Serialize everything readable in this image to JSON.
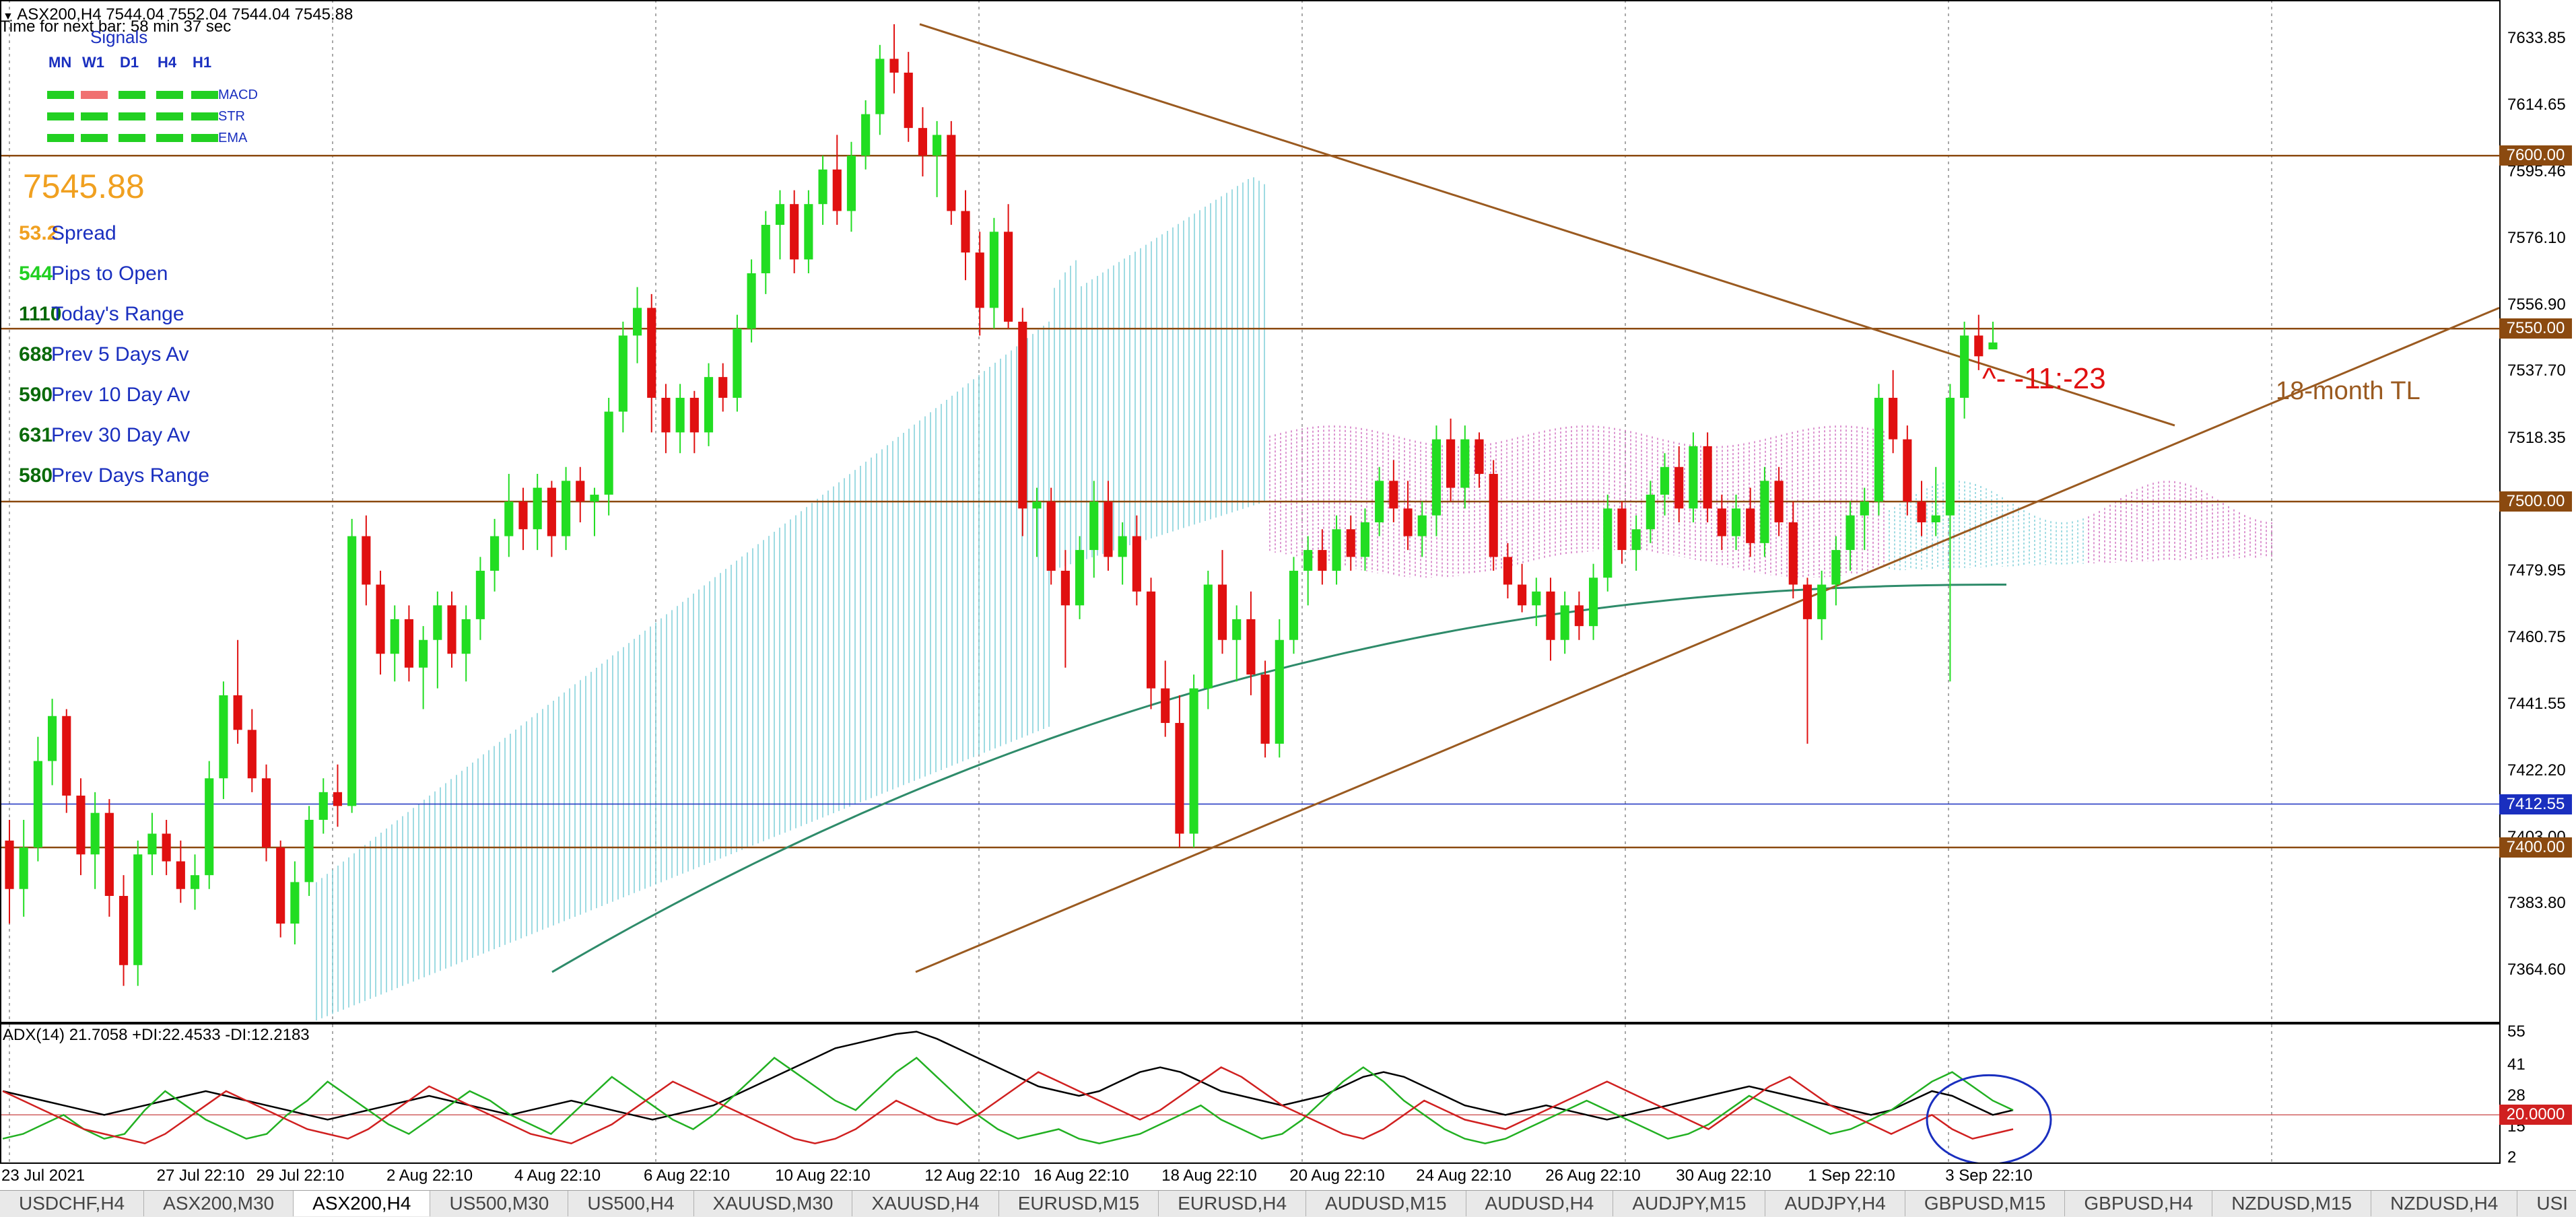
{
  "chart_header": {
    "title": "ASX200,H4  7544.04 7552.04 7544.04 7545.88",
    "next_bar": "Time for next bar: 58 min 37 sec"
  },
  "signals": {
    "title": "Signals",
    "timeframes": [
      "MN",
      "W1",
      "D1",
      "H4",
      "H1"
    ],
    "rows": [
      {
        "name": "MACD",
        "colors": [
          "#22d022",
          "#f07070",
          "#22d022",
          "#22d022",
          "#22d022"
        ],
        "name_color": "#f07070"
      },
      {
        "name": "STR",
        "colors": [
          "#22d022",
          "#22d022",
          "#22d022",
          "#22d022",
          "#22d022"
        ],
        "name_color": "#f0a020"
      },
      {
        "name": "EMA",
        "colors": [
          "#22d022",
          "#22d022",
          "#22d022",
          "#22d022",
          "#22d022"
        ],
        "name_color": "#22d022"
      }
    ]
  },
  "info_panel": {
    "price": "7545.88",
    "stats": [
      {
        "value": "53.2",
        "label": "Spread",
        "color": "#f0a020"
      },
      {
        "value": "544",
        "label": "Pips to Open",
        "color": "#22d022"
      },
      {
        "value": "1110",
        "label": "Today's Range",
        "color": "#0a6a0a"
      },
      {
        "value": "688",
        "label": "Prev 5 Days Av",
        "color": "#0a6a0a"
      },
      {
        "value": "590",
        "label": "Prev 10 Day Av",
        "color": "#0a6a0a"
      },
      {
        "value": "631",
        "label": "Prev 30 Day Av",
        "color": "#0a6a0a"
      },
      {
        "value": "580",
        "label": "Prev Days Range",
        "color": "#0a6a0a"
      }
    ]
  },
  "annotations": {
    "tl_label": "18-month TL",
    "bar_note": "^- -11:-23"
  },
  "price_axis": {
    "ticks": [
      "7633.85",
      "7614.65",
      "7595.46",
      "7576.10",
      "7556.90",
      "7537.70",
      "7518.35",
      "7499.15",
      "7479.95",
      "7460.75",
      "7441.55",
      "7422.20",
      "7403.00",
      "7383.80",
      "7364.60"
    ],
    "tick_values": [
      7633.85,
      7614.65,
      7595.46,
      7576.1,
      7556.9,
      7537.7,
      7518.35,
      7499.15,
      7479.95,
      7460.75,
      7441.55,
      7422.2,
      7403.0,
      7383.8,
      7364.6
    ],
    "level_tags": [
      {
        "label": "7600.00",
        "value": 7600.0,
        "color": "#8b4a10"
      },
      {
        "label": "7550.00",
        "value": 7550.0,
        "color": "#8b4a10"
      },
      {
        "label": "7500.00",
        "value": 7500.0,
        "color": "#8b4a10"
      },
      {
        "label": "7412.55",
        "value": 7412.55,
        "color": "#1a2fbf"
      },
      {
        "label": "7400.00",
        "value": 7400.0,
        "color": "#8b4a10"
      }
    ]
  },
  "time_axis": {
    "labels": [
      "23 Jul 2021",
      "27 Jul 22:10",
      "29 Jul 22:10",
      "2 Aug 22:10",
      "4 Aug 22:10",
      "6 Aug 22:10",
      "10 Aug 22:10",
      "12 Aug 22:10",
      "16 Aug 22:10",
      "18 Aug 22:10",
      "20 Aug 22:10",
      "24 Aug 22:10",
      "26 Aug 22:10",
      "30 Aug 22:10",
      "1 Sep 22:10",
      "3 Sep 22:10"
    ]
  },
  "adx": {
    "header": "ADX(14) 21.7058 +DI:22.4533 -DI:12.2183",
    "axis_ticks": [
      "55",
      "41",
      "28",
      "15",
      "2"
    ],
    "level_tag": "20.0000",
    "level_color": "#d02020"
  },
  "tabs": [
    {
      "label": "USDCHF,H4",
      "active": false
    },
    {
      "label": "ASX200,M30",
      "active": false
    },
    {
      "label": "ASX200,H4",
      "active": true
    },
    {
      "label": "US500,M30",
      "active": false
    },
    {
      "label": "US500,H4",
      "active": false
    },
    {
      "label": "XAUUSD,M30",
      "active": false
    },
    {
      "label": "XAUUSD,H4",
      "active": false
    },
    {
      "label": "EURUSD,M15",
      "active": false
    },
    {
      "label": "EURUSD,H4",
      "active": false
    },
    {
      "label": "AUDUSD,M15",
      "active": false
    },
    {
      "label": "AUDUSD,H4",
      "active": false
    },
    {
      "label": "AUDJPY,M15",
      "active": false
    },
    {
      "label": "AUDJPY,H4",
      "active": false
    },
    {
      "label": "GBPUSD,M15",
      "active": false
    },
    {
      "label": "GBPUSD,H4",
      "active": false
    },
    {
      "label": "NZDUSD,M15",
      "active": false
    },
    {
      "label": "NZDUSD,H4",
      "active": false
    },
    {
      "label": "USI",
      "active": false
    }
  ],
  "colors": {
    "bull": "#22dd22",
    "bear": "#e01010",
    "level": "#8b4a10",
    "trendline": "#9a5a20",
    "ma200": "#2e8b6a",
    "cloud_bull": "#7fcfd8",
    "cloud_bear": "#d070c0",
    "adx_main": "#000000",
    "adx_plus": "#22b022",
    "adx_minus": "#d02020",
    "note": "#e01010",
    "tl_label": "#9a5a20",
    "ellipse": "#1a2fbf"
  },
  "chart_data": {
    "type": "candlestick",
    "symbol": "ASX200",
    "timeframe": "H4",
    "ylim": [
      7350,
      7645
    ],
    "candles": [
      [
        7402,
        7408,
        7378,
        7388
      ],
      [
        7388,
        7408,
        7380,
        7400
      ],
      [
        7400,
        7432,
        7396,
        7425
      ],
      [
        7425,
        7443,
        7418,
        7438
      ],
      [
        7438,
        7440,
        7410,
        7415
      ],
      [
        7415,
        7420,
        7392,
        7398
      ],
      [
        7398,
        7416,
        7388,
        7410
      ],
      [
        7410,
        7414,
        7380,
        7386
      ],
      [
        7386,
        7392,
        7360,
        7366
      ],
      [
        7366,
        7402,
        7360,
        7398
      ],
      [
        7398,
        7410,
        7392,
        7404
      ],
      [
        7404,
        7408,
        7392,
        7396
      ],
      [
        7396,
        7402,
        7384,
        7388
      ],
      [
        7388,
        7398,
        7382,
        7392
      ],
      [
        7392,
        7425,
        7388,
        7420
      ],
      [
        7420,
        7448,
        7414,
        7444
      ],
      [
        7444,
        7460,
        7430,
        7434
      ],
      [
        7434,
        7440,
        7416,
        7420
      ],
      [
        7420,
        7424,
        7396,
        7400
      ],
      [
        7400,
        7402,
        7374,
        7378
      ],
      [
        7378,
        7396,
        7372,
        7390
      ],
      [
        7390,
        7412,
        7386,
        7408
      ],
      [
        7408,
        7420,
        7404,
        7416
      ],
      [
        7416,
        7424,
        7406,
        7412
      ],
      [
        7412,
        7495,
        7410,
        7490
      ],
      [
        7490,
        7496,
        7470,
        7476
      ],
      [
        7476,
        7480,
        7450,
        7456
      ],
      [
        7456,
        7470,
        7448,
        7466
      ],
      [
        7466,
        7470,
        7448,
        7452
      ],
      [
        7452,
        7464,
        7440,
        7460
      ],
      [
        7460,
        7474,
        7446,
        7470
      ],
      [
        7470,
        7474,
        7452,
        7456
      ],
      [
        7456,
        7470,
        7448,
        7466
      ],
      [
        7466,
        7484,
        7460,
        7480
      ],
      [
        7480,
        7495,
        7474,
        7490
      ],
      [
        7490,
        7508,
        7484,
        7500
      ],
      [
        7500,
        7504,
        7486,
        7492
      ],
      [
        7492,
        7508,
        7486,
        7504
      ],
      [
        7504,
        7506,
        7484,
        7490
      ],
      [
        7490,
        7510,
        7486,
        7506
      ],
      [
        7506,
        7510,
        7494,
        7500
      ],
      [
        7500,
        7504,
        7490,
        7502
      ],
      [
        7502,
        7530,
        7496,
        7526
      ],
      [
        7526,
        7552,
        7520,
        7548
      ],
      [
        7548,
        7562,
        7540,
        7556
      ],
      [
        7556,
        7560,
        7520,
        7530
      ],
      [
        7530,
        7534,
        7514,
        7520
      ],
      [
        7520,
        7534,
        7514,
        7530
      ],
      [
        7530,
        7532,
        7514,
        7520
      ],
      [
        7520,
        7540,
        7516,
        7536
      ],
      [
        7536,
        7540,
        7526,
        7530
      ],
      [
        7530,
        7554,
        7526,
        7550
      ],
      [
        7550,
        7570,
        7546,
        7566
      ],
      [
        7566,
        7584,
        7560,
        7580
      ],
      [
        7580,
        7590,
        7570,
        7586
      ],
      [
        7586,
        7590,
        7566,
        7570
      ],
      [
        7570,
        7590,
        7566,
        7586
      ],
      [
        7586,
        7600,
        7580,
        7596
      ],
      [
        7596,
        7606,
        7580,
        7584
      ],
      [
        7584,
        7604,
        7578,
        7600
      ],
      [
        7600,
        7616,
        7596,
        7612
      ],
      [
        7612,
        7632,
        7606,
        7628
      ],
      [
        7628,
        7638,
        7618,
        7624
      ],
      [
        7624,
        7630,
        7604,
        7608
      ],
      [
        7608,
        7614,
        7594,
        7600
      ],
      [
        7600,
        7610,
        7588,
        7606
      ],
      [
        7606,
        7610,
        7580,
        7584
      ],
      [
        7584,
        7590,
        7564,
        7572
      ],
      [
        7572,
        7578,
        7548,
        7556
      ],
      [
        7556,
        7582,
        7550,
        7578
      ],
      [
        7578,
        7586,
        7550,
        7552
      ],
      [
        7552,
        7556,
        7490,
        7498
      ],
      [
        7498,
        7504,
        7484,
        7500
      ],
      [
        7500,
        7504,
        7476,
        7480
      ],
      [
        7480,
        7486,
        7452,
        7470
      ],
      [
        7470,
        7490,
        7466,
        7486
      ],
      [
        7486,
        7506,
        7478,
        7500
      ],
      [
        7500,
        7506,
        7480,
        7484
      ],
      [
        7484,
        7494,
        7476,
        7490
      ],
      [
        7490,
        7496,
        7470,
        7474
      ],
      [
        7474,
        7478,
        7440,
        7446
      ],
      [
        7446,
        7454,
        7432,
        7436
      ],
      [
        7436,
        7444,
        7400,
        7404
      ],
      [
        7404,
        7450,
        7400,
        7446
      ],
      [
        7446,
        7480,
        7440,
        7476
      ],
      [
        7476,
        7486,
        7456,
        7460
      ],
      [
        7460,
        7470,
        7448,
        7466
      ],
      [
        7466,
        7474,
        7444,
        7450
      ],
      [
        7450,
        7454,
        7426,
        7430
      ],
      [
        7430,
        7466,
        7426,
        7460
      ],
      [
        7460,
        7484,
        7456,
        7480
      ],
      [
        7480,
        7490,
        7470,
        7486
      ],
      [
        7486,
        7492,
        7476,
        7480
      ],
      [
        7480,
        7496,
        7476,
        7492
      ],
      [
        7492,
        7496,
        7480,
        7484
      ],
      [
        7484,
        7498,
        7480,
        7494
      ],
      [
        7494,
        7510,
        7490,
        7506
      ],
      [
        7506,
        7512,
        7494,
        7498
      ],
      [
        7498,
        7506,
        7486,
        7490
      ],
      [
        7490,
        7500,
        7484,
        7496
      ],
      [
        7496,
        7522,
        7490,
        7518
      ],
      [
        7518,
        7524,
        7500,
        7504
      ],
      [
        7504,
        7522,
        7498,
        7518
      ],
      [
        7518,
        7520,
        7504,
        7508
      ],
      [
        7508,
        7512,
        7480,
        7484
      ],
      [
        7484,
        7488,
        7472,
        7476
      ],
      [
        7476,
        7482,
        7468,
        7470
      ],
      [
        7470,
        7478,
        7464,
        7474
      ],
      [
        7474,
        7478,
        7454,
        7460
      ],
      [
        7460,
        7474,
        7456,
        7470
      ],
      [
        7470,
        7474,
        7460,
        7464
      ],
      [
        7464,
        7482,
        7460,
        7478
      ],
      [
        7478,
        7502,
        7474,
        7498
      ],
      [
        7498,
        7500,
        7482,
        7486
      ],
      [
        7486,
        7496,
        7480,
        7492
      ],
      [
        7492,
        7506,
        7488,
        7502
      ],
      [
        7502,
        7514,
        7496,
        7510
      ],
      [
        7510,
        7516,
        7494,
        7498
      ],
      [
        7498,
        7520,
        7494,
        7516
      ],
      [
        7516,
        7520,
        7494,
        7498
      ],
      [
        7498,
        7502,
        7486,
        7490
      ],
      [
        7490,
        7502,
        7486,
        7498
      ],
      [
        7498,
        7504,
        7484,
        7488
      ],
      [
        7488,
        7510,
        7484,
        7506
      ],
      [
        7506,
        7510,
        7490,
        7494
      ],
      [
        7494,
        7500,
        7472,
        7476
      ],
      [
        7476,
        7478,
        7430,
        7466
      ],
      [
        7466,
        7480,
        7460,
        7476
      ],
      [
        7476,
        7490,
        7470,
        7486
      ],
      [
        7486,
        7500,
        7480,
        7496
      ],
      [
        7496,
        7504,
        7486,
        7500
      ],
      [
        7500,
        7534,
        7496,
        7530
      ],
      [
        7530,
        7538,
        7514,
        7518
      ],
      [
        7518,
        7522,
        7496,
        7500
      ],
      [
        7500,
        7506,
        7490,
        7494
      ],
      [
        7494,
        7510,
        7490,
        7496
      ],
      [
        7496,
        7534,
        7448,
        7530
      ],
      [
        7530,
        7552,
        7524,
        7548
      ],
      [
        7548,
        7554,
        7538,
        7542
      ],
      [
        7544,
        7552,
        7544,
        7546
      ]
    ],
    "horizontal_levels": [
      7600.0,
      7550.0,
      7500.0,
      7412.55,
      7400.0
    ],
    "adx_series": [
      {
        "name": "ADX",
        "color": "#000000",
        "values": [
          30,
          28,
          26,
          24,
          22,
          20,
          22,
          24,
          26,
          28,
          30,
          28,
          26,
          24,
          22,
          20,
          18,
          20,
          22,
          24,
          26,
          28,
          26,
          24,
          22,
          20,
          22,
          24,
          26,
          24,
          22,
          20,
          18,
          20,
          22,
          24,
          28,
          32,
          36,
          40,
          44,
          48,
          50,
          52,
          54,
          55,
          52,
          48,
          44,
          40,
          36,
          32,
          30,
          28,
          30,
          34,
          38,
          40,
          38,
          34,
          30,
          28,
          26,
          24,
          26,
          28,
          32,
          36,
          38,
          36,
          32,
          28,
          24,
          22,
          20,
          22,
          24,
          22,
          20,
          18,
          20,
          22,
          24,
          26,
          28,
          30,
          32,
          30,
          28,
          26,
          24,
          22,
          20,
          22,
          26,
          30,
          28,
          24,
          20,
          22
        ]
      },
      {
        "name": "+DI",
        "color": "#22b022",
        "values": [
          10,
          12,
          16,
          20,
          14,
          10,
          12,
          22,
          30,
          24,
          18,
          14,
          10,
          12,
          20,
          26,
          34,
          28,
          22,
          16,
          12,
          18,
          24,
          30,
          26,
          20,
          16,
          12,
          20,
          28,
          36,
          30,
          24,
          18,
          14,
          20,
          28,
          36,
          44,
          38,
          32,
          26,
          22,
          30,
          38,
          44,
          36,
          28,
          20,
          14,
          10,
          12,
          14,
          10,
          8,
          10,
          12,
          16,
          20,
          24,
          18,
          14,
          10,
          12,
          18,
          26,
          34,
          40,
          34,
          26,
          20,
          14,
          10,
          8,
          10,
          14,
          18,
          22,
          26,
          22,
          18,
          14,
          10,
          12,
          16,
          22,
          28,
          24,
          20,
          16,
          12,
          14,
          18,
          22,
          28,
          34,
          38,
          32,
          26,
          22
        ]
      },
      {
        "name": "-DI",
        "color": "#d02020",
        "values": [
          30,
          26,
          22,
          18,
          14,
          12,
          10,
          8,
          12,
          18,
          24,
          30,
          26,
          22,
          18,
          14,
          12,
          10,
          14,
          20,
          26,
          32,
          28,
          24,
          20,
          16,
          12,
          10,
          8,
          12,
          16,
          22,
          28,
          34,
          30,
          26,
          22,
          18,
          14,
          10,
          8,
          10,
          14,
          20,
          26,
          22,
          18,
          16,
          20,
          26,
          32,
          38,
          34,
          30,
          26,
          22,
          18,
          22,
          28,
          34,
          40,
          36,
          30,
          24,
          20,
          16,
          12,
          10,
          14,
          20,
          26,
          22,
          18,
          16,
          14,
          18,
          22,
          26,
          30,
          34,
          30,
          26,
          22,
          18,
          14,
          20,
          26,
          32,
          36,
          30,
          24,
          20,
          16,
          12,
          16,
          20,
          14,
          10,
          12,
          14
        ]
      }
    ],
    "adx_ylim": [
      0,
      58
    ]
  }
}
